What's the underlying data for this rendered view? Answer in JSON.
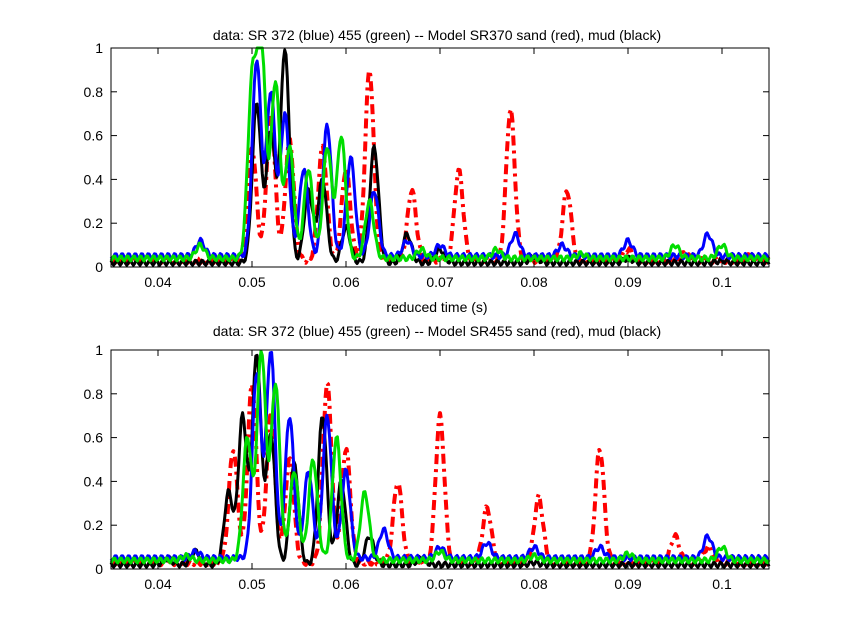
{
  "chart_data": [
    {
      "type": "line",
      "title": "data: SR 372 (blue) 455 (green) -- Model SR370 sand (red), mud (black)",
      "xlabel": "reduced time (s)",
      "ylabel": "",
      "xlim": [
        0.035,
        0.105
      ],
      "ylim": [
        0,
        1
      ],
      "xticks": [
        0.04,
        0.05,
        0.06,
        0.07,
        0.08,
        0.09,
        0.1
      ],
      "xtick_labels": [
        "0.04",
        "0.05",
        "0.06",
        "0.07",
        "0.08",
        "0.09",
        "0.1"
      ],
      "yticks": [
        0,
        0.2,
        0.4,
        0.6,
        0.8,
        1
      ],
      "ytick_labels": [
        "0",
        "0.2",
        "0.4",
        "0.6",
        "0.8",
        "1"
      ],
      "grid": false,
      "series": [
        {
          "color": "#ff0000",
          "style": "dashdot",
          "peaks": [
            [
              0.05,
              0.55
            ],
            [
              0.052,
              0.7
            ],
            [
              0.054,
              0.58
            ],
            [
              0.0575,
              0.55
            ],
            [
              0.06,
              0.45
            ],
            [
              0.0625,
              0.9
            ],
            [
              0.067,
              0.35
            ],
            [
              0.072,
              0.44
            ],
            [
              0.0775,
              0.72
            ],
            [
              0.0835,
              0.35
            ],
            [
              0.09,
              0.08
            ],
            [
              0.096,
              0.06
            ],
            [
              0.103,
              0.05
            ]
          ],
          "baseline": 0.03
        },
        {
          "color": "#000000",
          "style": "solid",
          "peaks": [
            [
              0.0505,
              0.75
            ],
            [
              0.052,
              0.62
            ],
            [
              0.0535,
              1.0
            ],
            [
              0.056,
              0.35
            ],
            [
              0.0575,
              0.4
            ],
            [
              0.06,
              0.18
            ],
            [
              0.063,
              0.55
            ],
            [
              0.0665,
              0.15
            ],
            [
              0.07,
              0.08
            ],
            [
              0.08,
              0.05
            ],
            [
              0.09,
              0.04
            ],
            [
              0.1,
              0.03
            ]
          ],
          "baseline": 0.02
        },
        {
          "color": "#0000ff",
          "style": "solid",
          "peaks": [
            [
              0.0445,
              0.12
            ],
            [
              0.0505,
              0.95
            ],
            [
              0.052,
              0.8
            ],
            [
              0.0535,
              0.7
            ],
            [
              0.0555,
              0.45
            ],
            [
              0.058,
              0.65
            ],
            [
              0.0605,
              0.5
            ],
            [
              0.063,
              0.35
            ],
            [
              0.0665,
              0.12
            ],
            [
              0.07,
              0.1
            ],
            [
              0.078,
              0.15
            ],
            [
              0.083,
              0.1
            ],
            [
              0.09,
              0.12
            ],
            [
              0.0985,
              0.15
            ]
          ],
          "baseline": 0.05
        },
        {
          "color": "#00dd00",
          "style": "solid",
          "peaks": [
            [
              0.0445,
              0.1
            ],
            [
              0.05,
              0.82
            ],
            [
              0.051,
              1.0
            ],
            [
              0.0525,
              0.85
            ],
            [
              0.054,
              0.55
            ],
            [
              0.056,
              0.45
            ],
            [
              0.058,
              0.55
            ],
            [
              0.0595,
              0.6
            ],
            [
              0.0625,
              0.3
            ],
            [
              0.068,
              0.08
            ],
            [
              0.076,
              0.08
            ],
            [
              0.085,
              0.06
            ],
            [
              0.095,
              0.1
            ],
            [
              0.1,
              0.1
            ]
          ],
          "baseline": 0.04
        }
      ]
    },
    {
      "type": "line",
      "title": "data: SR 372 (blue) 455 (green) -- Model SR455 sand (red), mud (black)",
      "xlabel": "",
      "ylabel": "",
      "xlim": [
        0.035,
        0.105
      ],
      "ylim": [
        0,
        1
      ],
      "xticks": [
        0.04,
        0.05,
        0.06,
        0.07,
        0.08,
        0.09,
        0.1
      ],
      "xtick_labels": [
        "0.04",
        "0.05",
        "0.06",
        "0.07",
        "0.08",
        "0.09",
        "0.1"
      ],
      "yticks": [
        0,
        0.2,
        0.4,
        0.6,
        0.8,
        1
      ],
      "ytick_labels": [
        "0",
        "0.2",
        "0.4",
        "0.6",
        "0.8",
        "1"
      ],
      "grid": false,
      "series": [
        {
          "color": "#ff0000",
          "style": "dashdot",
          "peaks": [
            [
              0.048,
              0.55
            ],
            [
              0.05,
              0.85
            ],
            [
              0.052,
              0.7
            ],
            [
              0.054,
              0.5
            ],
            [
              0.058,
              0.85
            ],
            [
              0.06,
              0.55
            ],
            [
              0.0655,
              0.4
            ],
            [
              0.07,
              0.7
            ],
            [
              0.075,
              0.28
            ],
            [
              0.0805,
              0.33
            ],
            [
              0.087,
              0.55
            ],
            [
              0.095,
              0.15
            ],
            [
              0.0985,
              0.1
            ]
          ],
          "baseline": 0.03
        },
        {
          "color": "#000000",
          "style": "solid",
          "peaks": [
            [
              0.041,
              0.05
            ],
            [
              0.044,
              0.08
            ],
            [
              0.0475,
              0.35
            ],
            [
              0.049,
              0.7
            ],
            [
              0.0505,
              0.98
            ],
            [
              0.052,
              0.62
            ],
            [
              0.0545,
              0.48
            ],
            [
              0.0575,
              0.7
            ],
            [
              0.0595,
              0.4
            ],
            [
              0.0625,
              0.15
            ],
            [
              0.068,
              0.05
            ],
            [
              0.08,
              0.03
            ]
          ],
          "baseline": 0.02
        },
        {
          "color": "#0000ff",
          "style": "solid",
          "peaks": [
            [
              0.044,
              0.08
            ],
            [
              0.0505,
              0.9
            ],
            [
              0.052,
              1.0
            ],
            [
              0.054,
              0.7
            ],
            [
              0.056,
              0.45
            ],
            [
              0.058,
              0.7
            ],
            [
              0.06,
              0.45
            ],
            [
              0.064,
              0.18
            ],
            [
              0.07,
              0.1
            ],
            [
              0.075,
              0.12
            ],
            [
              0.08,
              0.1
            ],
            [
              0.087,
              0.1
            ],
            [
              0.0985,
              0.15
            ]
          ],
          "baseline": 0.05
        },
        {
          "color": "#00dd00",
          "style": "solid",
          "peaks": [
            [
              0.043,
              0.06
            ],
            [
              0.0495,
              0.6
            ],
            [
              0.051,
              1.0
            ],
            [
              0.0525,
              0.85
            ],
            [
              0.0545,
              0.45
            ],
            [
              0.0565,
              0.5
            ],
            [
              0.059,
              0.6
            ],
            [
              0.062,
              0.35
            ],
            [
              0.07,
              0.08
            ],
            [
              0.08,
              0.06
            ],
            [
              0.09,
              0.07
            ],
            [
              0.1,
              0.1
            ]
          ],
          "baseline": 0.04
        }
      ]
    }
  ]
}
